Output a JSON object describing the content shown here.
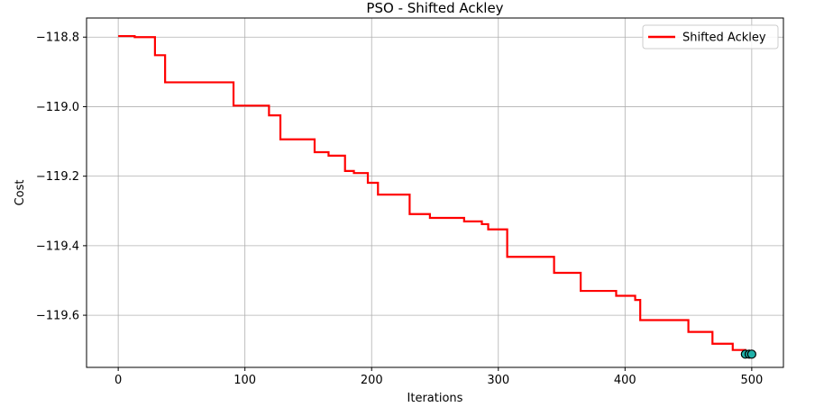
{
  "chart_data": {
    "type": "line",
    "title": "PSO - Shifted Ackley",
    "xlabel": "Iterations",
    "ylabel": "Cost",
    "xlim": [
      -25,
      525
    ],
    "ylim": [
      -119.75,
      -118.745
    ],
    "xticks": [
      0,
      100,
      200,
      300,
      400,
      500
    ],
    "yticks": [
      -118.8,
      -119.0,
      -119.2,
      -119.4,
      -119.6
    ],
    "xtick_labels": [
      "0",
      "100",
      "200",
      "300",
      "400",
      "500"
    ],
    "ytick_labels": [
      "−118.8",
      "−119.0",
      "−119.2",
      "−119.4",
      "−119.6"
    ],
    "grid": true,
    "legend_position": "top-right",
    "series": [
      {
        "name": "Shifted Ackley",
        "color": "#ff0000",
        "steps": [
          [
            0,
            -118.797
          ],
          [
            13,
            -118.8
          ],
          [
            29,
            -118.852
          ],
          [
            37,
            -118.93
          ],
          [
            91,
            -118.997
          ],
          [
            119,
            -119.025
          ],
          [
            128,
            -119.094
          ],
          [
            155,
            -119.131
          ],
          [
            166,
            -119.141
          ],
          [
            179,
            -119.185
          ],
          [
            186,
            -119.191
          ],
          [
            197,
            -119.219
          ],
          [
            205,
            -119.253
          ],
          [
            230,
            -119.309
          ],
          [
            246,
            -119.32
          ],
          [
            273,
            -119.33
          ],
          [
            287,
            -119.338
          ],
          [
            292,
            -119.353
          ],
          [
            307,
            -119.432
          ],
          [
            344,
            -119.478
          ],
          [
            365,
            -119.53
          ],
          [
            393,
            -119.544
          ],
          [
            408,
            -119.556
          ],
          [
            412,
            -119.614
          ],
          [
            450,
            -119.648
          ],
          [
            469,
            -119.682
          ],
          [
            485,
            -119.7
          ],
          [
            495,
            -119.712
          ],
          [
            500,
            -119.712
          ]
        ]
      }
    ],
    "end_markers": {
      "points": [
        [
          495,
          -119.712
        ],
        [
          498,
          -119.712
        ],
        [
          500,
          -119.712
        ]
      ],
      "fill_color": "#20b2aa",
      "edge_color": "#000000"
    }
  }
}
